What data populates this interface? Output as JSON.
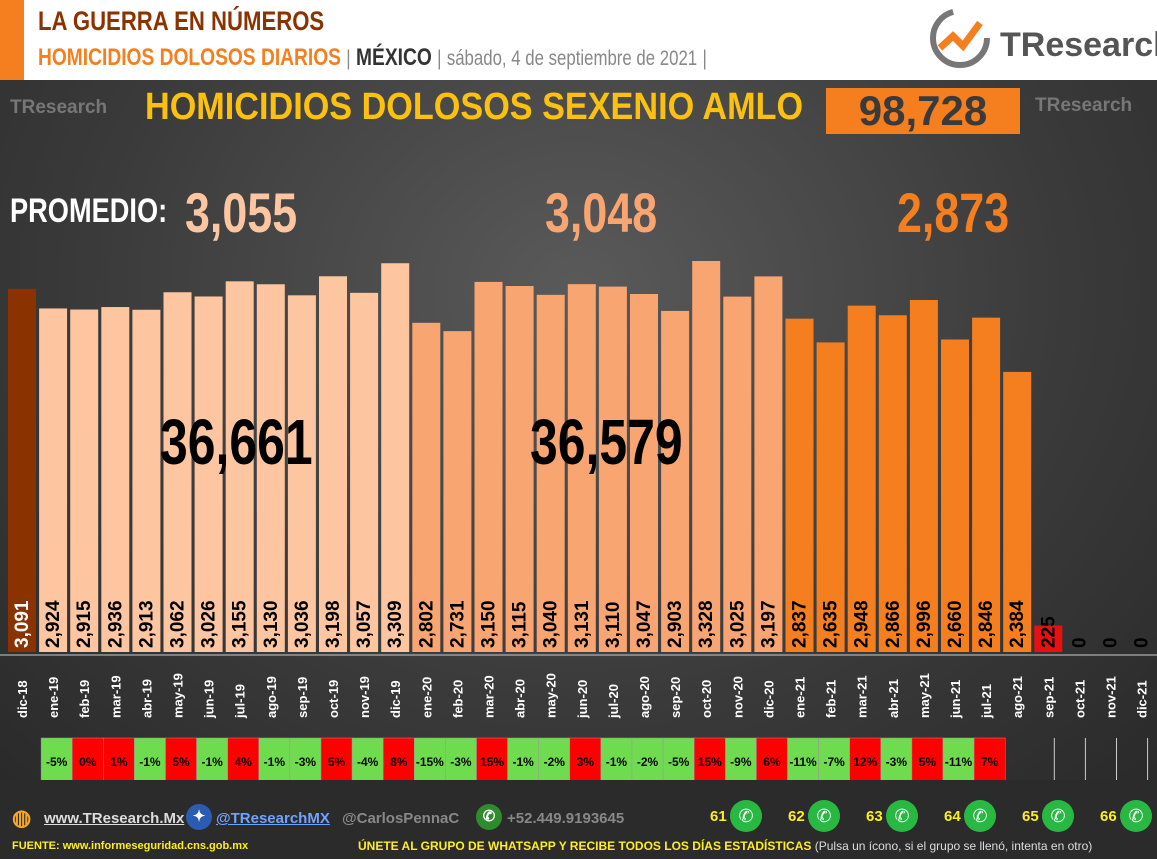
{
  "header": {
    "title": "LA GUERRA EN NÚMEROS",
    "subtitle": "HOMICIDIOS DOLOSOS DIARIOS",
    "sep": "|",
    "country": "MÉXICO",
    "date": "sábado, 4 de septiembre de 2021",
    "brand": "TResearch",
    "brand_t": "T"
  },
  "banner": {
    "title": "HOMICIDIOS DOLOSOS SEXENIO AMLO",
    "total": "98,728"
  },
  "averages": {
    "label": "PROMEDIO:",
    "values": [
      "3,055",
      "3,048",
      "2,873"
    ]
  },
  "totals": [
    "36,661",
    "36,579"
  ],
  "colors": {
    "dic18": "#8b3300",
    "y2019": "#fdc6a1",
    "y2020": "#f9a571",
    "y2021": "#f57f1e",
    "partial": "#e81010",
    "up": "#ff0000",
    "down": "#6fdc4f"
  },
  "chart_data": {
    "type": "bar",
    "categories": [
      "dic-18",
      "ene-19",
      "feb-19",
      "mar-19",
      "abr-19",
      "may-19",
      "jun-19",
      "jul-19",
      "ago-19",
      "sep-19",
      "oct-19",
      "nov-19",
      "dic-19",
      "ene-20",
      "feb-20",
      "mar-20",
      "abr-20",
      "may-20",
      "jun-20",
      "jul-20",
      "ago-20",
      "sep-20",
      "oct-20",
      "nov-20",
      "dic-20",
      "ene-21",
      "feb-21",
      "mar-21",
      "abr-21",
      "may-21",
      "jun-21",
      "jul-21",
      "ago-21",
      "sep-21",
      "oct-21",
      "nov-21",
      "dic-21"
    ],
    "values": [
      3091,
      2924,
      2915,
      2936,
      2913,
      3062,
      3026,
      3155,
      3130,
      3036,
      3198,
      3057,
      3309,
      2802,
      2731,
      3150,
      3115,
      3040,
      3131,
      3110,
      3047,
      2903,
      3328,
      3025,
      3197,
      2837,
      2635,
      2948,
      2866,
      2996,
      2660,
      2846,
      2384,
      225,
      0,
      0,
      0
    ],
    "labels": [
      "3,091",
      "2,924",
      "2,915",
      "2,936",
      "2,913",
      "3,062",
      "3,026",
      "3,155",
      "3,130",
      "3,036",
      "3,198",
      "3,057",
      "3,309",
      "2,802",
      "2,731",
      "3,150",
      "3,115",
      "3,040",
      "3,131",
      "3,110",
      "3,047",
      "2,903",
      "3,328",
      "3,025",
      "3,197",
      "2,837",
      "2,635",
      "2,948",
      "2,866",
      "2,996",
      "2,660",
      "2,846",
      "2,384",
      "225",
      "0",
      "0",
      "0"
    ],
    "pct_change": [
      "-5%",
      "0%",
      "1%",
      "-1%",
      "5%",
      "-1%",
      "4%",
      "-1%",
      "-3%",
      "5%",
      "-4%",
      "8%",
      "-15%",
      "-3%",
      "15%",
      "-1%",
      "-2%",
      "3%",
      "-1%",
      "-2%",
      "-5%",
      "15%",
      "-9%",
      "6%",
      "-11%",
      "-7%",
      "12%",
      "-3%",
      "5%",
      "-11%",
      "7%"
    ],
    "ylim": [
      0,
      3400
    ]
  },
  "footer": {
    "web": "www.TResearch.Mx",
    "twitter": "@TResearchMX",
    "carlos": "@CarlosPennaC",
    "phone": "+52.449.9193645",
    "groups": [
      "61",
      "62",
      "63",
      "64",
      "65",
      "66"
    ],
    "source": "FUENTE: www.informeseguridad.cns.gob.mx",
    "join": "ÚNETE AL GRUPO DE WHATSAPP Y RECIBE TODOS LOS DÍAS ESTADÍSTICAS",
    "join_note": "(Pulsa un ícono, si el grupo se llenó, intenta en otro)"
  }
}
